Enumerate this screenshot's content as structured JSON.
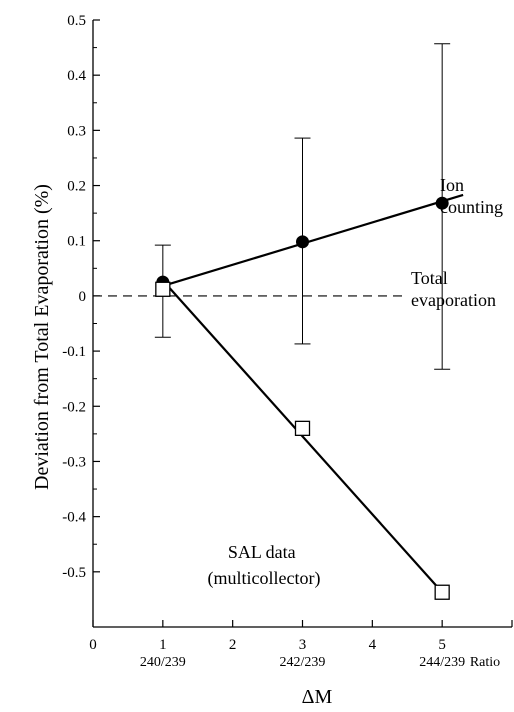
{
  "chart_data": {
    "type": "line",
    "title": "",
    "xlabel": "ΔM",
    "ylabel": "Deviation from Total Evaporation (%)",
    "xlim": [
      0,
      6
    ],
    "ylim": [
      -0.6,
      0.5
    ],
    "x_ticks": [
      "0",
      "1",
      "2",
      "3",
      "4",
      "5"
    ],
    "y_ticks": [
      "0.5",
      "0.4",
      "0.3",
      "0.2",
      "0.1",
      "0",
      "-0.1",
      "-0.2",
      "-0.3",
      "-0.4",
      "-0.5"
    ],
    "x_ticks_secondary": [
      {
        "x": 1,
        "label": "240/239"
      },
      {
        "x": 3,
        "label": "242/239"
      },
      {
        "x": 5,
        "label": "244/239"
      }
    ],
    "x_secondary_title": "Ratio",
    "grid": false,
    "series": [
      {
        "name": "Ion counting",
        "marker": "filled-circle",
        "points": [
          {
            "x": 1,
            "y": 0.025,
            "err_low": -0.075,
            "err_high": 0.092
          },
          {
            "x": 3,
            "y": 0.098,
            "err_low": -0.087,
            "err_high": 0.286
          },
          {
            "x": 5,
            "y": 0.168,
            "err_low": -0.133,
            "err_high": 0.457
          }
        ],
        "fit_line": [
          {
            "x": 1,
            "y": 0.018
          },
          {
            "x": 5.3,
            "y": 0.183
          }
        ]
      },
      {
        "name": "SAL data (multicollector)",
        "marker": "open-square",
        "points": [
          {
            "x": 1,
            "y": 0.012
          },
          {
            "x": 3,
            "y": -0.24
          },
          {
            "x": 5,
            "y": -0.537
          }
        ],
        "fit_line": [
          {
            "x": 1,
            "y": 0.028
          },
          {
            "x": 5,
            "y": -0.537
          }
        ]
      }
    ],
    "reference_line": {
      "y": 0,
      "style": "dashed",
      "label_lines": [
        "Total",
        "evaporation"
      ]
    },
    "annotations": {
      "ion_counting": [
        "Ion",
        "counting"
      ],
      "sal_data": [
        "SAL data",
        "(multicollector)"
      ]
    }
  },
  "colors": {
    "ink": "#000000",
    "background": "#ffffff"
  }
}
